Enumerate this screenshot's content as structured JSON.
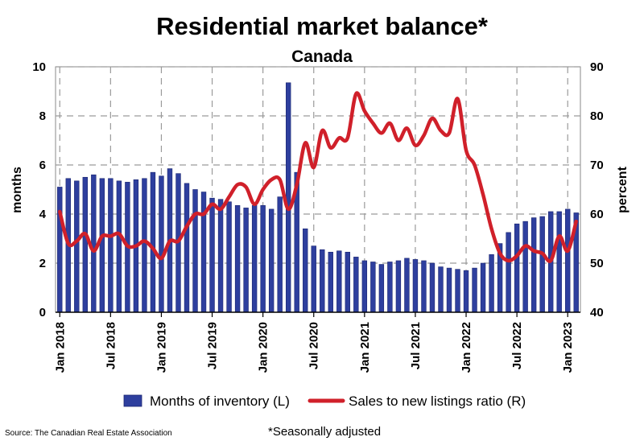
{
  "chart_data": {
    "type": "bar+line",
    "title": "Residential market balance*",
    "subtitle": "Canada",
    "ylabel_left": "months",
    "ylabel_right": "percent",
    "ylim_left": [
      0,
      10
    ],
    "ylim_right": [
      40,
      90
    ],
    "yticks_left": [
      "0",
      "2",
      "4",
      "6",
      "8",
      "10"
    ],
    "yticks_right": [
      "40",
      "50",
      "60",
      "70",
      "80",
      "90"
    ],
    "xtick_labels": [
      "Jan 2018",
      "Jul 2018",
      "Jan 2019",
      "Jul 2019",
      "Jan 2020",
      "Jul 2020",
      "Jan 2021",
      "Jul 2021",
      "Jan 2022",
      "Jul 2022",
      "Jan 2023"
    ],
    "xtick_month_index": [
      0,
      6,
      12,
      18,
      24,
      30,
      36,
      42,
      48,
      54,
      60
    ],
    "grid": true,
    "series": [
      {
        "name": "Months of inventory (L)",
        "type": "bar",
        "axis": "left",
        "color": "#2e3f9e",
        "values": [
          5.1,
          5.45,
          5.35,
          5.5,
          5.6,
          5.45,
          5.45,
          5.35,
          5.3,
          5.4,
          5.45,
          5.7,
          5.55,
          5.85,
          5.65,
          5.25,
          5.0,
          4.9,
          4.65,
          4.6,
          4.5,
          4.35,
          4.25,
          4.35,
          4.35,
          4.2,
          4.7,
          9.35,
          5.7,
          3.4,
          2.7,
          2.55,
          2.45,
          2.5,
          2.45,
          2.25,
          2.1,
          2.05,
          1.95,
          2.05,
          2.1,
          2.2,
          2.15,
          2.1,
          2.0,
          1.85,
          1.8,
          1.75,
          1.7,
          1.8,
          2.0,
          2.35,
          2.8,
          3.25,
          3.6,
          3.7,
          3.85,
          3.9,
          4.1,
          4.1,
          4.2,
          4.05
        ]
      },
      {
        "name": "Sales to new listings ratio (R)",
        "type": "line",
        "axis": "right",
        "color": "#d0202a",
        "values": [
          60.5,
          54.0,
          54.5,
          56.0,
          52.5,
          55.5,
          55.5,
          56.0,
          53.5,
          53.5,
          54.5,
          53.0,
          51.0,
          54.5,
          54.5,
          57.5,
          60.0,
          60.0,
          62.0,
          61.0,
          63.5,
          66.0,
          65.5,
          62.0,
          65.0,
          67.0,
          67.0,
          61.0,
          66.0,
          74.5,
          69.5,
          77.0,
          73.5,
          75.5,
          75.5,
          84.5,
          81.0,
          78.5,
          76.5,
          78.5,
          75.0,
          77.5,
          74.0,
          76.0,
          79.5,
          77.0,
          76.5,
          83.5,
          73.0,
          70.0,
          64.0,
          57.0,
          52.0,
          50.5,
          51.5,
          53.5,
          52.5,
          52.0,
          50.5,
          55.5,
          52.5,
          58.5
        ]
      }
    ],
    "legend_position": "bottom",
    "note": "*Seasonally adjusted",
    "source": "Source: The Canadian Real Estate Association"
  }
}
